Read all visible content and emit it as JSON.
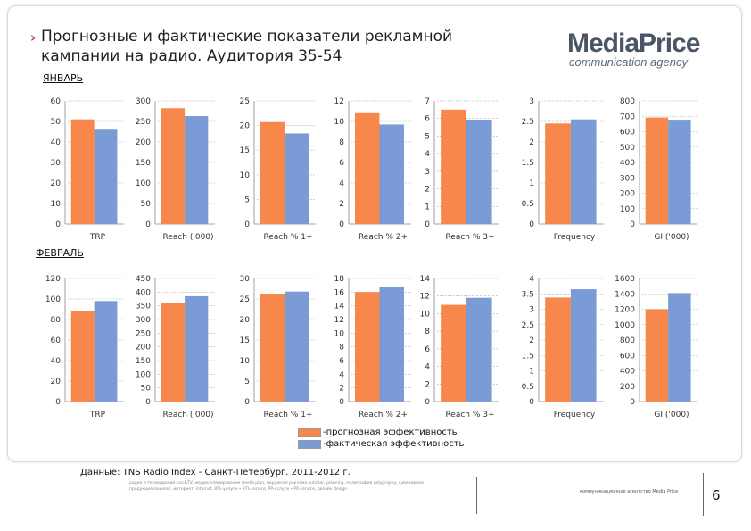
{
  "title": "Прогнозные и фактические показатели рекламной кампании на радио. Аудитория 35-54",
  "logo": {
    "brand": "MediaPrice",
    "sub": "communication agency"
  },
  "sections": {
    "january": "ЯНВАРЬ",
    "february": "ФЕВРАЛЬ"
  },
  "legend": {
    "forecast": "-прогнозная эффективность",
    "actual": "-фактическая эффективность"
  },
  "colors": {
    "forecast": "#f7874a",
    "actual": "#7b9bd6"
  },
  "footer": {
    "source": "Данные: TNS Radio Index - Санкт-Петербург. 2011-2012 г.",
    "small_line1": "радио и телевидение: scc&TV, медиа-планирование media plan, наружная реклама outdoor, planning, полиграфия polygraphy, сувенирная",
    "small_line2": "продукция souvenir, интернет: internet, BTL-услуги • BTL-service, PR-услуги • PR-service, дизайн design",
    "agency": "коммуникационное агентство Media Price",
    "page": "6"
  },
  "chart_data": [
    {
      "type": "bar",
      "group": "ЯНВАРЬ",
      "categories": [
        "TRP"
      ],
      "series": [
        {
          "name": "прогнозная эффективность",
          "values": [
            51
          ]
        },
        {
          "name": "фактическая эффективность",
          "values": [
            46
          ]
        }
      ],
      "ylim": [
        0,
        60
      ],
      "ticks": [
        0,
        10,
        20,
        30,
        40,
        50,
        60
      ]
    },
    {
      "type": "bar",
      "group": "ЯНВАРЬ",
      "categories": [
        "Reach ('000)"
      ],
      "series": [
        {
          "name": "прогнозная эффективность",
          "values": [
            282
          ]
        },
        {
          "name": "фактическая эффективность",
          "values": [
            263
          ]
        }
      ],
      "ylim": [
        0,
        300
      ],
      "ticks": [
        0,
        50,
        100,
        150,
        200,
        250,
        300
      ]
    },
    {
      "type": "bar",
      "group": "ЯНВАРЬ",
      "categories": [
        "Reach % 1+"
      ],
      "series": [
        {
          "name": "прогнозная эффективность",
          "values": [
            20.7
          ]
        },
        {
          "name": "фактическая эффективность",
          "values": [
            18.4
          ]
        }
      ],
      "ylim": [
        0,
        25
      ],
      "ticks": [
        0,
        5,
        10,
        15,
        20,
        25
      ]
    },
    {
      "type": "bar",
      "group": "ЯНВАРЬ",
      "categories": [
        "Reach % 2+"
      ],
      "series": [
        {
          "name": "прогнозная эффективность",
          "values": [
            10.8
          ]
        },
        {
          "name": "фактическая эффективность",
          "values": [
            9.7
          ]
        }
      ],
      "ylim": [
        0,
        12
      ],
      "ticks": [
        0,
        2,
        4,
        6,
        8,
        10,
        12
      ]
    },
    {
      "type": "bar",
      "group": "ЯНВАРЬ",
      "categories": [
        "Reach % 3+"
      ],
      "series": [
        {
          "name": "прогнозная эффективность",
          "values": [
            6.5
          ]
        },
        {
          "name": "фактическая эффективность",
          "values": [
            5.9
          ]
        }
      ],
      "ylim": [
        0,
        7
      ],
      "ticks": [
        0,
        1,
        2,
        3,
        4,
        5,
        6,
        7
      ]
    },
    {
      "type": "bar",
      "group": "ЯНВАРЬ",
      "categories": [
        "Frequency"
      ],
      "series": [
        {
          "name": "прогнозная эффективность",
          "values": [
            2.45
          ]
        },
        {
          "name": "фактическая эффективность",
          "values": [
            2.55
          ]
        }
      ],
      "ylim": [
        0,
        3
      ],
      "ticks": [
        0,
        0.5,
        1,
        1.5,
        2,
        2.5,
        3
      ],
      "tick_labels": [
        "0",
        "0.5",
        "1",
        "1.5",
        "2",
        "2.5",
        "3"
      ]
    },
    {
      "type": "bar",
      "group": "ЯНВАРЬ",
      "categories": [
        "GI ('000)"
      ],
      "series": [
        {
          "name": "прогнозная эффективность",
          "values": [
            692
          ]
        },
        {
          "name": "фактическая эффективность",
          "values": [
            672
          ]
        }
      ],
      "ylim": [
        0,
        800
      ],
      "ticks": [
        0,
        100,
        200,
        300,
        400,
        500,
        600,
        700,
        800
      ]
    },
    {
      "type": "bar",
      "group": "ФЕВРАЛЬ",
      "categories": [
        "TRP"
      ],
      "series": [
        {
          "name": "прогнозная эффективность",
          "values": [
            88
          ]
        },
        {
          "name": "фактическая эффективность",
          "values": [
            98
          ]
        }
      ],
      "ylim": [
        0,
        120
      ],
      "ticks": [
        0,
        20,
        40,
        60,
        80,
        100,
        120
      ]
    },
    {
      "type": "bar",
      "group": "ФЕВРАЛЬ",
      "categories": [
        "Reach ('000)"
      ],
      "series": [
        {
          "name": "прогнозная эффективность",
          "values": [
            360
          ]
        },
        {
          "name": "фактическая эффективность",
          "values": [
            385
          ]
        }
      ],
      "ylim": [
        0,
        450
      ],
      "ticks": [
        0,
        50,
        100,
        150,
        200,
        250,
        300,
        350,
        400,
        450
      ]
    },
    {
      "type": "bar",
      "group": "ФЕВРАЛЬ",
      "categories": [
        "Reach % 1+"
      ],
      "series": [
        {
          "name": "прогнозная эффективность",
          "values": [
            26.3
          ]
        },
        {
          "name": "фактическая эффективность",
          "values": [
            26.8
          ]
        }
      ],
      "ylim": [
        0,
        30
      ],
      "ticks": [
        0,
        5,
        10,
        15,
        20,
        25,
        30
      ]
    },
    {
      "type": "bar",
      "group": "ФЕВРАЛЬ",
      "categories": [
        "Reach % 2+"
      ],
      "series": [
        {
          "name": "прогнозная эффективность",
          "values": [
            16
          ]
        },
        {
          "name": "фактическая эффективность",
          "values": [
            16.7
          ]
        }
      ],
      "ylim": [
        0,
        18
      ],
      "ticks": [
        0,
        2,
        4,
        6,
        8,
        10,
        12,
        14,
        16,
        18
      ]
    },
    {
      "type": "bar",
      "group": "ФЕВРАЛЬ",
      "categories": [
        "Reach % 3+"
      ],
      "series": [
        {
          "name": "прогнозная эффективность",
          "values": [
            11
          ]
        },
        {
          "name": "фактическая эффективность",
          "values": [
            11.8
          ]
        }
      ],
      "ylim": [
        0,
        14
      ],
      "ticks": [
        0,
        2,
        4,
        6,
        8,
        10,
        12,
        14
      ]
    },
    {
      "type": "bar",
      "group": "ФЕВРАЛЬ",
      "categories": [
        "Frequency"
      ],
      "series": [
        {
          "name": "прогнозная эффективность",
          "values": [
            3.38
          ]
        },
        {
          "name": "фактическая эффективность",
          "values": [
            3.65
          ]
        }
      ],
      "ylim": [
        0,
        4
      ],
      "ticks": [
        0,
        0.5,
        1,
        1.5,
        2,
        2.5,
        3,
        3.5,
        4
      ],
      "tick_labels": [
        "0",
        "0.5",
        "1",
        "1.5",
        "2",
        "2.5",
        "3",
        "3.5",
        "4"
      ]
    },
    {
      "type": "bar",
      "group": "ФЕВРАЛЬ",
      "categories": [
        "GI ('000)"
      ],
      "series": [
        {
          "name": "прогнозная эффективность",
          "values": [
            1200
          ]
        },
        {
          "name": "фактическая эффективность",
          "values": [
            1410
          ]
        }
      ],
      "ylim": [
        0,
        1600
      ],
      "ticks": [
        0,
        200,
        400,
        600,
        800,
        1000,
        1200,
        1400,
        1600
      ]
    }
  ]
}
